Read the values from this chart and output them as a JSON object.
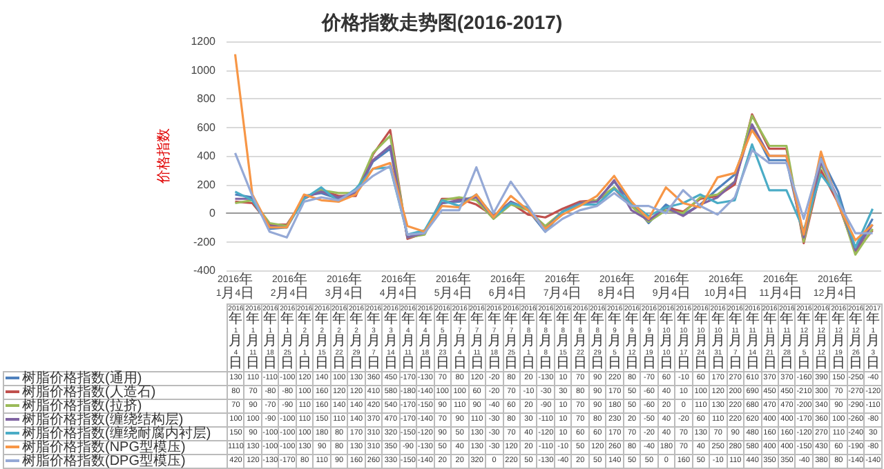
{
  "chart_data": {
    "type": "line",
    "title": "价格指数走势图(2016-2017)",
    "ylabel": "价格指数",
    "categories": [
      "2016年1月4日",
      "2016年1月11日",
      "2016年1月18日",
      "2016年1月25日",
      "2016年2月1日",
      "2016年2月15日",
      "2016年2月22日",
      "2016年2月29日",
      "2016年3月7日",
      "2016年3月14日",
      "2016年4月11日",
      "2016年4月18日",
      "2016年5月23日",
      "2016年7月4日",
      "2016年7月11日",
      "2016年7月18日",
      "2016年7月25日",
      "2016年8月1日",
      "2016年8月8日",
      "2016年8月15日",
      "2016年8月22日",
      "2016年8月29日",
      "2016年9月5日",
      "2016年9月12日",
      "2016年9月19日",
      "2016年10月10日",
      "2016年10月17日",
      "2016年10月24日",
      "2016年10月31日",
      "2016年11月7日",
      "2016年11月14日",
      "2016年11月21日",
      "2016年11月28日",
      "2016年12月5日",
      "2016年12月12日",
      "2016年12月19日",
      "2016年12月26日",
      "2017年1月3日"
    ],
    "series": [
      {
        "name": "树脂价格指数(通用)",
        "color": "#4f81bd",
        "values": [
          130,
          110,
          -110,
          -100,
          120,
          140,
          100,
          130,
          360,
          450,
          -170,
          -130,
          70,
          80,
          120,
          -20,
          80,
          20,
          -130,
          10,
          70,
          90,
          220,
          80,
          -70,
          60,
          -10,
          60,
          170,
          270,
          610,
          370,
          370,
          -160,
          390,
          150,
          -250,
          -40
        ]
      },
      {
        "name": "树脂价格指数(人造石)",
        "color": "#c0504d",
        "values": [
          80,
          70,
          -80,
          -80,
          100,
          160,
          120,
          120,
          410,
          580,
          -180,
          -140,
          100,
          100,
          60,
          -20,
          70,
          -10,
          -30,
          30,
          80,
          90,
          170,
          50,
          -60,
          40,
          10,
          100,
          120,
          200,
          690,
          450,
          450,
          -210,
          300,
          70,
          -270,
          -120
        ]
      },
      {
        "name": "树脂价格指数(拉挤)",
        "color": "#9bbb59",
        "values": [
          70,
          90,
          -70,
          -90,
          110,
          160,
          140,
          140,
          420,
          540,
          -170,
          -150,
          90,
          110,
          90,
          -40,
          60,
          20,
          -90,
          10,
          70,
          90,
          180,
          50,
          -60,
          20,
          0,
          110,
          130,
          220,
          680,
          470,
          470,
          -200,
          340,
          90,
          -290,
          -110
        ]
      },
      {
        "name": "树脂价格指数(缠绕结构层)",
        "color": "#8064a2",
        "values": [
          100,
          100,
          -90,
          -100,
          110,
          150,
          110,
          140,
          370,
          470,
          -170,
          -140,
          70,
          90,
          110,
          -30,
          80,
          30,
          -110,
          10,
          70,
          80,
          230,
          20,
          -50,
          40,
          -20,
          60,
          110,
          220,
          620,
          400,
          400,
          -170,
          360,
          100,
          -260,
          -80
        ]
      },
      {
        "name": "树脂价格指数(缠绕耐腐内衬层)",
        "color": "#4bacc6",
        "values": [
          150,
          90,
          -100,
          -100,
          100,
          180,
          80,
          170,
          310,
          320,
          -150,
          -120,
          90,
          50,
          130,
          -30,
          70,
          40,
          -120,
          10,
          60,
          60,
          170,
          70,
          -20,
          40,
          70,
          130,
          70,
          90,
          480,
          160,
          160,
          -120,
          270,
          110,
          -240,
          30
        ]
      },
      {
        "name": "树脂价格指数(NPG型模压)",
        "color": "#f79646",
        "values": [
          1110,
          130,
          -100,
          -100,
          130,
          90,
          80,
          130,
          310,
          350,
          -90,
          -130,
          50,
          40,
          130,
          -30,
          120,
          20,
          -110,
          -10,
          50,
          120,
          260,
          80,
          -40,
          180,
          70,
          40,
          250,
          280,
          580,
          400,
          400,
          -150,
          430,
          60,
          -190,
          -80
        ]
      },
      {
        "name": "树脂价格指数(DPG型模压)",
        "color": "#95a9d6",
        "values": [
          420,
          120,
          -130,
          -170,
          80,
          110,
          90,
          160,
          260,
          330,
          -150,
          -140,
          20,
          20,
          320,
          0,
          220,
          50,
          -130,
          -40,
          20,
          50,
          140,
          50,
          50,
          0,
          160,
          50,
          -10,
          110,
          440,
          350,
          350,
          -40,
          380,
          80,
          -140,
          -140
        ]
      }
    ],
    "annotations": [
      "2016年1月4日",
      "2016年2月4日",
      "2016年3月4日",
      "2016年4月4日",
      "2016年5月4日",
      "2016年6月4日",
      "2016年7月4日",
      "2016年8月4日",
      "2016年9月4日",
      "2016年10月4日",
      "2016年11月4日",
      "2016年12月4日"
    ],
    "ylim": [
      -400,
      1200
    ],
    "yticks": [
      -400,
      -200,
      0,
      200,
      400,
      600,
      800,
      1000,
      1200
    ],
    "grid": "y",
    "marker": "none",
    "data_labels": true,
    "legend": "bottom"
  }
}
